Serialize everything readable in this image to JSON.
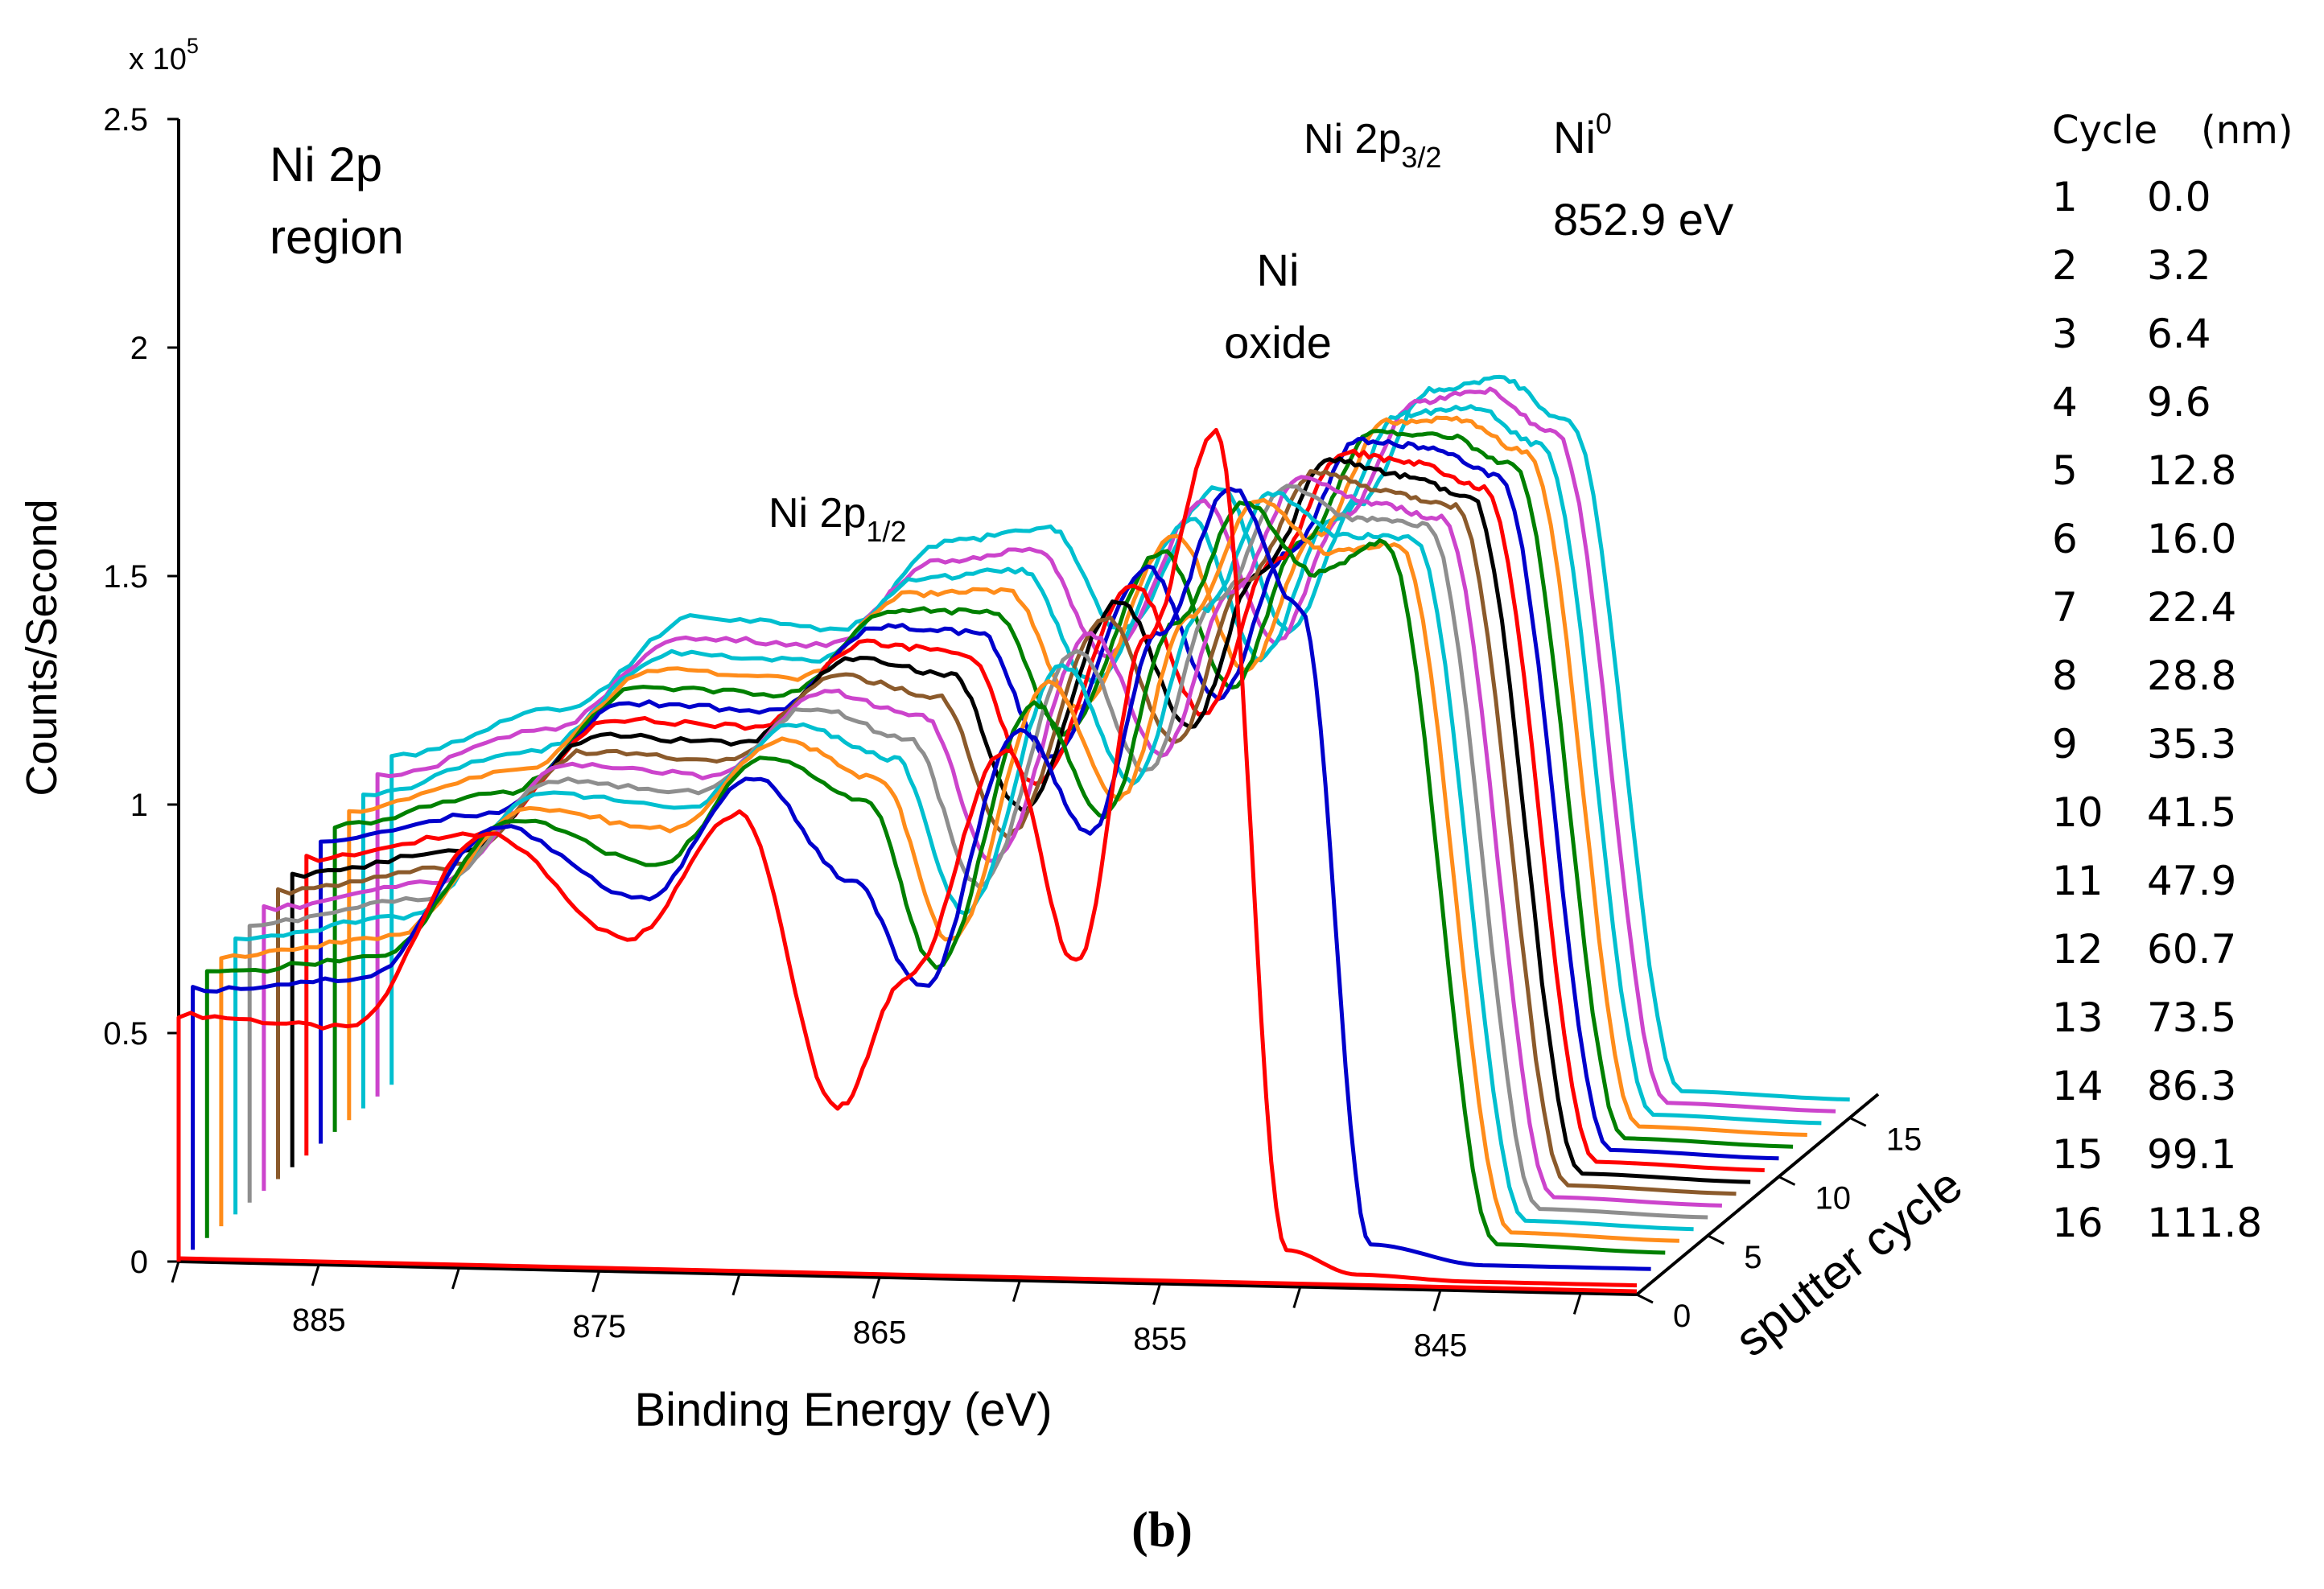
{
  "chart_data": {
    "type": "line",
    "subtype": "3d-waterfall",
    "panel_label": "(b)",
    "region_title": [
      "Ni 2p",
      "region"
    ],
    "xlabel": "Binding Energy (eV)",
    "ylabel": "Counts/Second",
    "ylabel_multiplier": "x 10^5",
    "x_ticks": [
      885,
      875,
      865,
      855,
      845
    ],
    "x_tick_labels": [
      "885",
      "875",
      "865",
      "855",
      "845"
    ],
    "xlim": [
      890,
      838
    ],
    "y_ticks": [
      0,
      0.5,
      1,
      1.5,
      2,
      2.5
    ],
    "y_tick_labels": [
      "0",
      "0.5",
      "1",
      "1.5",
      "2",
      "2.5"
    ],
    "ylim": [
      0,
      2.5
    ],
    "z_label": "sputter cycle",
    "z_ticks": [
      0,
      5,
      10,
      15
    ],
    "z_tick_labels": [
      "0",
      "5",
      "10",
      "15"
    ],
    "zlim": [
      0,
      17
    ],
    "annotations": {
      "ni_2p12": {
        "main": "Ni 2p",
        "sub": "1/2"
      },
      "ni_2p32": {
        "main": "Ni 2p",
        "sub": "3/2"
      },
      "ni0": {
        "main": "Ni",
        "sup": "0",
        "energy": "852.9 eV"
      },
      "ni_oxide": [
        "Ni",
        "oxide"
      ]
    },
    "legend_header": {
      "cycle": "Cycle",
      "depth": "(nm)"
    },
    "keypoints_x_ev": [
      890,
      884,
      879,
      874,
      870,
      866.5,
      864,
      860.5,
      858,
      855.5,
      853,
      850.5,
      848,
      844,
      838
    ],
    "series": [
      {
        "name": "1",
        "depth_nm": "0.0",
        "color": "#FF0000",
        "values": [
          0.54,
          0.52,
          0.95,
          0.73,
          1.01,
          0.37,
          0.66,
          1.16,
          0.7,
          1.41,
          1.87,
          0.08,
          0.03,
          0.02,
          0.02
        ]
      },
      {
        "name": "2",
        "depth_nm": "3.2",
        "color": "#0000CC",
        "values": [
          0.57,
          0.6,
          0.94,
          0.79,
          1.06,
          0.84,
          0.61,
          1.18,
          0.96,
          1.4,
          1.72,
          1.46,
          0.07,
          0.03,
          0.03
        ]
      },
      {
        "name": "3",
        "depth_nm": "6.4",
        "color": "#008000",
        "values": [
          0.58,
          0.62,
          0.93,
          0.84,
          1.08,
          0.99,
          0.63,
          1.21,
          0.97,
          1.39,
          1.66,
          1.51,
          1.58,
          0.05,
          0.04
        ]
      },
      {
        "name": "4",
        "depth_nm": "9.6",
        "color": "#FF8C1A",
        "values": [
          0.59,
          0.64,
          0.93,
          0.89,
          1.09,
          1.01,
          0.66,
          1.23,
          0.98,
          1.38,
          1.64,
          1.53,
          1.55,
          0.05,
          0.04
        ]
      },
      {
        "name": "5",
        "depth_nm": "12.8",
        "color": "#00BFCF",
        "values": [
          0.6,
          0.66,
          0.94,
          0.91,
          1.1,
          1.03,
          0.7,
          1.24,
          0.99,
          1.37,
          1.63,
          1.54,
          1.54,
          0.05,
          0.04
        ]
      },
      {
        "name": "6",
        "depth_nm": "16.0",
        "color": "#8E8E8E",
        "values": [
          0.61,
          0.67,
          0.94,
          0.92,
          1.11,
          1.05,
          0.73,
          1.25,
          0.99,
          1.37,
          1.62,
          1.55,
          1.54,
          0.05,
          0.04
        ]
      },
      {
        "name": "7",
        "depth_nm": "22.4",
        "color": "#CC44CC",
        "values": [
          0.62,
          0.68,
          0.95,
          0.93,
          1.12,
          1.07,
          0.76,
          1.26,
          1.0,
          1.36,
          1.61,
          1.56,
          1.53,
          0.05,
          0.04
        ]
      },
      {
        "name": "8",
        "depth_nm": "28.8",
        "color": "#8B5A2B",
        "values": [
          0.63,
          0.69,
          0.95,
          0.94,
          1.13,
          1.09,
          0.79,
          1.27,
          1.0,
          1.36,
          1.6,
          1.56,
          1.53,
          0.05,
          0.04
        ]
      },
      {
        "name": "9",
        "depth_nm": "35.3",
        "color": "#000000",
        "values": [
          0.64,
          0.7,
          0.96,
          0.95,
          1.14,
          1.11,
          0.82,
          1.28,
          1.01,
          1.35,
          1.6,
          1.57,
          1.53,
          0.05,
          0.04
        ]
      },
      {
        "name": "10",
        "depth_nm": "41.5",
        "color": "#FF0000",
        "values": [
          0.65,
          0.71,
          0.97,
          0.96,
          1.15,
          1.13,
          0.85,
          1.29,
          1.01,
          1.35,
          1.59,
          1.57,
          1.52,
          0.05,
          0.04
        ]
      },
      {
        "name": "11",
        "depth_nm": "47.9",
        "color": "#0000CC",
        "values": [
          0.66,
          0.73,
          0.98,
          0.97,
          1.16,
          1.15,
          0.88,
          1.3,
          1.02,
          1.34,
          1.59,
          1.58,
          1.52,
          0.05,
          0.04
        ]
      },
      {
        "name": "12",
        "depth_nm": "60.7",
        "color": "#008000",
        "values": [
          0.67,
          0.75,
          0.99,
          0.98,
          1.17,
          1.17,
          0.91,
          1.31,
          1.02,
          1.34,
          1.58,
          1.58,
          1.52,
          0.05,
          0.04
        ]
      },
      {
        "name": "13",
        "depth_nm": "73.5",
        "color": "#FF8C1A",
        "values": [
          0.68,
          0.77,
          1.0,
          0.99,
          1.18,
          1.19,
          0.94,
          1.32,
          1.03,
          1.33,
          1.58,
          1.59,
          1.52,
          0.05,
          0.04
        ]
      },
      {
        "name": "14",
        "depth_nm": "86.3",
        "color": "#00BFCF",
        "values": [
          0.69,
          0.79,
          1.01,
          1.0,
          1.19,
          1.21,
          0.97,
          1.33,
          1.03,
          1.33,
          1.57,
          1.59,
          1.51,
          0.05,
          0.04
        ]
      },
      {
        "name": "15",
        "depth_nm": "99.1",
        "color": "#CC44CC",
        "values": [
          0.7,
          0.81,
          1.02,
          1.01,
          1.2,
          1.23,
          1.0,
          1.34,
          1.04,
          1.32,
          1.57,
          1.6,
          1.51,
          0.05,
          0.04
        ]
      },
      {
        "name": "16",
        "depth_nm": "111.8",
        "color": "#00BFCF",
        "values": [
          0.72,
          0.83,
          1.04,
          1.02,
          1.22,
          1.25,
          1.03,
          1.35,
          1.04,
          1.32,
          1.57,
          1.6,
          1.51,
          0.05,
          0.04
        ]
      }
    ]
  }
}
